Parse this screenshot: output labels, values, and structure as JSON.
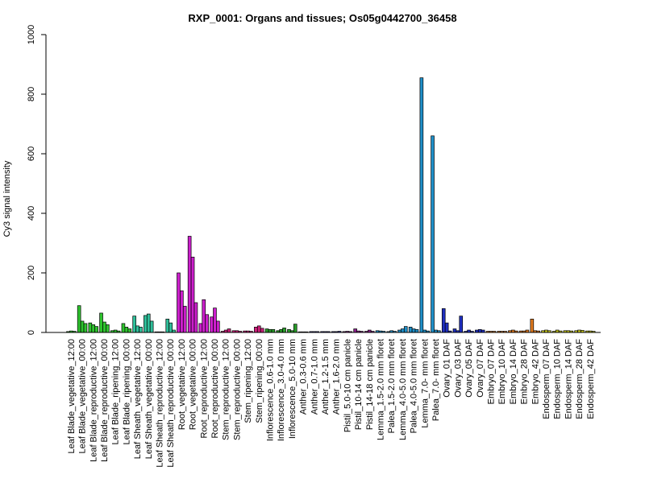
{
  "chart_data": {
    "type": "bar",
    "title": "RXP_0001: Organs and tissues; Os05g0442700_36458",
    "xlabel": "",
    "ylabel": "Cy3 signal intensity",
    "ylim": [
      0,
      1000
    ],
    "yticks": [
      0,
      200,
      400,
      600,
      800,
      1000
    ],
    "grid": false,
    "categories": [
      "Leaf Blade_vegetative_12:00",
      "Leaf Blade_vegetative_00:00",
      "Leaf Blade_reproductive_12:00",
      "Leaf Blade_reproductive_00:00",
      "Leaf Blade_ripening_12:00",
      "Leaf Blade_ripening_00:00",
      "Leaf Sheath_vegetative_12:00",
      "Leaf Sheath_vegetative_00:00",
      "Leaf Sheath_reproductive_12:00",
      "Leaf Sheath_reproductive_00:00",
      "Root_vegetative_12:00",
      "Root_vegetative_00:00",
      "Root_reproductive_12:00",
      "Root_reproductive_00:00",
      "Stem_reproductive_12:00",
      "Stem_reproductive_00:00",
      "Stem_ripening_12:00",
      "Stem_ripening_00:00",
      "Inflorescence_0.6-1.0 mm",
      "Inflorescence_3.0-4.0 mm",
      "Inflorescence_5.0-10 mm",
      "Anther_0.3-0.6 mm",
      "Anther_0.7-1.0 mm",
      "Anther_1.2-1.5 mm",
      "Anther_1.6-2.0 mm",
      "Pistil_5.0-10 cm panicle",
      "Pistil_10-14 cm panicle",
      "Pistil_14-18 cm panicle",
      "Lemma_1.5-2.0 mm floret",
      "Palea_1.5-2.0 mm floret",
      "Lemma_4.0-5.0 mm floret",
      "Palea_4.0-5.0 mm floret",
      "Lemma_7.0- mm floret",
      "Palea_7.0- mm floret",
      "Ovary_01 DAF",
      "Ovary_03 DAF",
      "Ovary_05 DAF",
      "Ovary_07 DAF",
      "Embryo_07 DAF",
      "Embryo_10 DAF",
      "Embryo_14 DAF",
      "Embryo_28 DAF",
      "Embryo_42 DAF",
      "Endosperm_07 DAF",
      "Endosperm_10 DAF",
      "Endosperm_14 DAF",
      "Endosperm_28 DAF",
      "Endosperm_42 DAF"
    ],
    "replicates": [
      [
        3,
        5,
        4
      ],
      [
        90,
        38,
        30
      ],
      [
        32,
        26,
        20
      ],
      [
        65,
        35,
        26
      ],
      [
        6,
        8,
        5
      ],
      [
        30,
        18,
        12
      ],
      [
        55,
        22,
        18
      ],
      [
        57,
        62,
        38
      ],
      [
        2,
        2,
        2
      ],
      [
        45,
        32,
        8
      ],
      [
        200,
        140,
        88
      ],
      [
        323,
        253,
        100
      ],
      [
        30,
        110,
        60
      ],
      [
        52,
        82,
        38
      ],
      [
        4,
        8,
        12
      ],
      [
        6,
        6,
        4
      ],
      [
        5,
        5,
        4
      ],
      [
        18,
        22,
        14
      ],
      [
        12,
        10,
        10
      ],
      [
        6,
        10,
        15
      ],
      [
        10,
        6,
        28
      ],
      [
        2,
        2,
        2
      ],
      [
        3,
        3,
        3
      ],
      [
        3,
        3,
        3
      ],
      [
        3,
        3,
        4
      ],
      [
        3,
        4,
        3
      ],
      [
        12,
        5,
        4
      ],
      [
        4,
        8,
        4
      ],
      [
        6,
        5,
        4
      ],
      [
        3,
        6,
        4
      ],
      [
        8,
        12,
        20
      ],
      [
        18,
        12,
        10
      ],
      [
        855,
        8,
        5
      ],
      [
        660,
        8,
        6
      ],
      [
        80,
        32,
        5
      ],
      [
        12,
        6,
        55
      ],
      [
        4,
        8,
        4
      ],
      [
        8,
        10,
        8
      ],
      [
        4,
        4,
        4
      ],
      [
        4,
        4,
        4
      ],
      [
        6,
        8,
        5
      ],
      [
        5,
        5,
        8
      ],
      [
        45,
        6,
        5
      ],
      [
        6,
        8,
        6
      ],
      [
        4,
        8,
        5
      ],
      [
        6,
        6,
        5
      ],
      [
        6,
        8,
        7
      ],
      [
        5,
        5,
        4
      ]
    ],
    "group_colors": [
      "#2fc42f",
      "#2fc42f",
      "#2fc42f",
      "#2fc42f",
      "#2fc42f",
      "#2fc42f",
      "#2fbf9a",
      "#2fbf9a",
      "#2fbf9a",
      "#2fbf9a",
      "#cc1fcc",
      "#cc1fcc",
      "#cc1fcc",
      "#cc1fcc",
      "#cc1f7a",
      "#cc1f7a",
      "#cc1f7a",
      "#cc1f7a",
      "#2a9d2a",
      "#2a9d2a",
      "#2a9d2a",
      "#2a2a9d",
      "#2a2a9d",
      "#2a2a9d",
      "#2a2a9d",
      "#8a1f8a",
      "#8a1f8a",
      "#8a1f8a",
      "#1f8fc8",
      "#1f8fc8",
      "#1f8fc8",
      "#1f8fc8",
      "#1f8fc8",
      "#1f8fc8",
      "#1f2fc0",
      "#1f2fc0",
      "#1f2fc0",
      "#1f2fc0",
      "#e07a1f",
      "#e07a1f",
      "#e07a1f",
      "#e07a1f",
      "#e07a1f",
      "#c8c81f",
      "#c8c81f",
      "#c8c81f",
      "#c8c81f",
      "#c8c81f"
    ],
    "bar_outline": "#000000"
  }
}
